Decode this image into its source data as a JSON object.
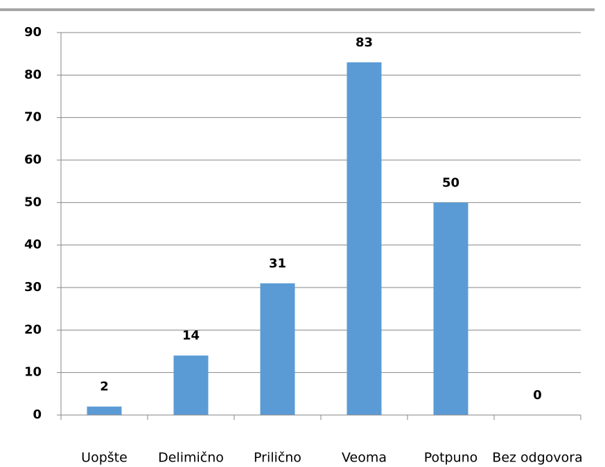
{
  "chart_data": {
    "type": "bar",
    "categories": [
      "Uopšte",
      "Delimično",
      "Prilično",
      "Veoma",
      "Potpuno",
      "Bez odgovora"
    ],
    "values": [
      2,
      14,
      31,
      83,
      50,
      0
    ],
    "color": "#5b9bd5",
    "ylim": [
      0,
      90
    ],
    "yticks": [
      0,
      10,
      20,
      30,
      40,
      50,
      60,
      70,
      80,
      90
    ],
    "grid": true
  }
}
